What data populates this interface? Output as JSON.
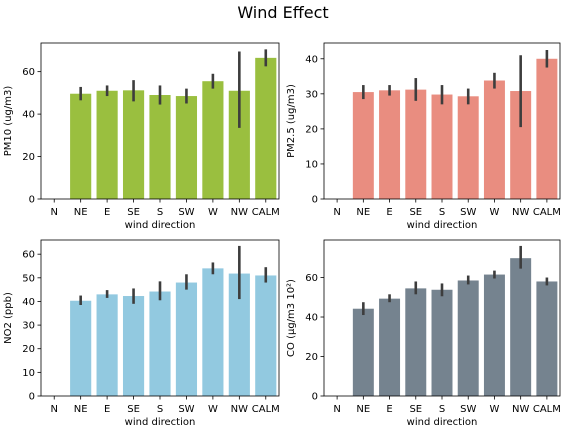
{
  "figure": {
    "title": "Wind Effect"
  },
  "chart_data": [
    {
      "type": "bar",
      "xlabel": "wind direction",
      "ylabel": "PM10 (ug/m3)",
      "ylim": [
        0,
        73.5
      ],
      "yticks": [
        0,
        20,
        40,
        60
      ],
      "color": "#9abf3f",
      "categories": [
        "N",
        "NE",
        "E",
        "SE",
        "S",
        "SW",
        "W",
        "NW",
        "CALM"
      ],
      "values": [
        null,
        49.6,
        51.0,
        51.2,
        49.0,
        48.5,
        55.5,
        51.0,
        66.5
      ],
      "error_low": [
        null,
        46.5,
        48.5,
        46.0,
        44.5,
        45.0,
        52.0,
        33.5,
        62.5
      ],
      "error_high": [
        null,
        52.8,
        53.5,
        56.0,
        53.5,
        52.0,
        59.0,
        69.5,
        70.5
      ]
    },
    {
      "type": "bar",
      "xlabel": "wind direction",
      "ylabel": "PM2.5 (ug/m3)",
      "ylim": [
        0,
        44.5
      ],
      "yticks": [
        0,
        10,
        20,
        30,
        40
      ],
      "color": "#e98d80",
      "categories": [
        "N",
        "NE",
        "E",
        "SE",
        "S",
        "SW",
        "W",
        "NW",
        "CALM"
      ],
      "values": [
        null,
        30.5,
        31.0,
        31.2,
        29.8,
        29.3,
        33.8,
        30.8,
        40.0
      ],
      "error_low": [
        null,
        28.5,
        29.5,
        28.0,
        27.0,
        27.0,
        31.5,
        20.5,
        37.5
      ],
      "error_high": [
        null,
        32.5,
        32.5,
        34.5,
        32.5,
        31.5,
        36.0,
        41.0,
        42.5
      ]
    },
    {
      "type": "bar",
      "xlabel": "wind direction",
      "ylabel": "NO2 (ppb)",
      "ylim": [
        0,
        66
      ],
      "yticks": [
        0,
        10,
        20,
        30,
        40,
        50,
        60
      ],
      "color": "#92c9e0",
      "categories": [
        "N",
        "NE",
        "E",
        "SE",
        "S",
        "SW",
        "W",
        "NW",
        "CALM"
      ],
      "values": [
        null,
        40.3,
        43.0,
        42.3,
        44.2,
        48.0,
        54.0,
        51.8,
        51.0
      ],
      "error_low": [
        null,
        38.5,
        41.5,
        39.0,
        40.5,
        45.0,
        51.5,
        41.0,
        48.0
      ],
      "error_high": [
        null,
        42.5,
        44.8,
        45.5,
        48.5,
        51.5,
        56.5,
        63.5,
        54.5
      ]
    },
    {
      "type": "bar",
      "xlabel": "wind direction",
      "ylabel": "CO (µg/m3 10²)",
      "ylim": [
        0,
        79
      ],
      "yticks": [
        0,
        20,
        40,
        60
      ],
      "color": "#75838f",
      "categories": [
        "N",
        "NE",
        "E",
        "SE",
        "S",
        "SW",
        "W",
        "NW",
        "CALM"
      ],
      "values": [
        null,
        44.2,
        49.3,
        54.5,
        53.8,
        58.5,
        61.5,
        69.8,
        58.0
      ],
      "error_low": [
        null,
        41.0,
        47.5,
        51.5,
        50.5,
        56.5,
        59.5,
        64.5,
        56.0
      ],
      "error_high": [
        null,
        47.5,
        51.5,
        58.0,
        57.0,
        61.0,
        63.5,
        76.0,
        60.0
      ]
    }
  ]
}
